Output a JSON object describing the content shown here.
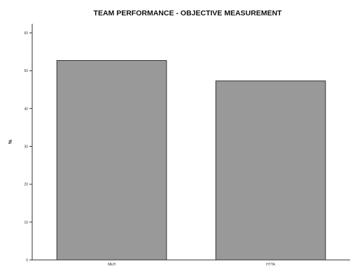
{
  "chart_data": {
    "type": "bar",
    "title": "TEAM PERFORMANCE - OBJECTIVE MEASUREMENT",
    "categories": [
      "MEH",
      "HTTA"
    ],
    "values": [
      52.7,
      47.3
    ],
    "ylabel": "%",
    "xlabel": "",
    "ylim": [
      0,
      60
    ],
    "yticks": [
      0,
      10,
      20,
      30,
      40,
      50,
      60
    ],
    "grid": false,
    "bar_color": "#999999",
    "bar_edge_color": "#333333"
  }
}
